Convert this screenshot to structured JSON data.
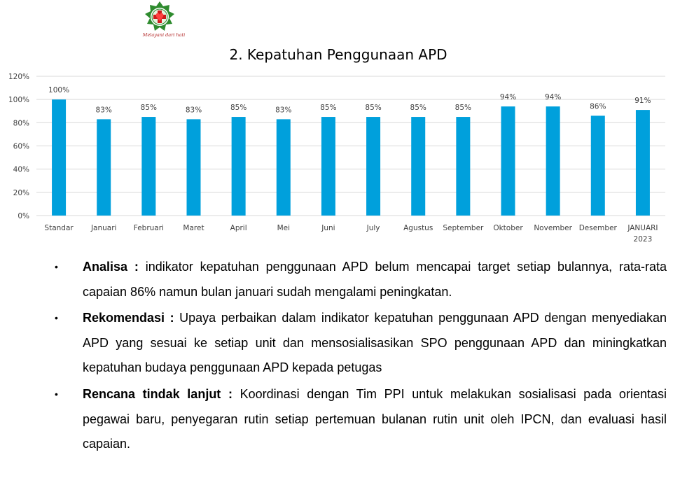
{
  "logo": {
    "motto": "Melayani dari hati"
  },
  "chart_data": {
    "type": "bar",
    "title": "2. Kepatuhan Penggunaan APD",
    "categories": [
      "Standar",
      "Januari",
      "Februari",
      "Maret",
      "April",
      "Mei",
      "Juni",
      "July",
      "Agustus",
      "September",
      "Oktober",
      "November",
      "Desember",
      "JANUARI 2023"
    ],
    "values": [
      100,
      83,
      85,
      83,
      85,
      83,
      85,
      85,
      85,
      85,
      94,
      94,
      86,
      91
    ],
    "data_labels": [
      "100%",
      "83%",
      "85%",
      "83%",
      "85%",
      "83%",
      "85%",
      "85%",
      "85%",
      "85%",
      "94%",
      "94%",
      "86%",
      "91%"
    ],
    "yticks": [
      "0%",
      "20%",
      "40%",
      "60%",
      "80%",
      "100%",
      "120%"
    ],
    "ylim": [
      0,
      120
    ],
    "grid": true,
    "bar_color": "#00A0DC",
    "legend": "none"
  },
  "notes": [
    {
      "label": "Analisa :",
      "text": "indikator kepatuhan penggunaan APD belum mencapai target setiap bulannya, rata-rata capaian 86% namun bulan januari sudah mengalami peningkatan."
    },
    {
      "label": "Rekomendasi :",
      "text": "Upaya perbaikan dalam indikator kepatuhan penggunaan APD dengan menyediakan APD yang sesuai ke setiap unit dan mensosialisasikan SPO penggunaan APD dan miningkatkan kepatuhan budaya penggunaan APD kepada petugas"
    },
    {
      "label": "Rencana tindak lanjut :",
      "text": "Koordinasi dengan Tim PPI untuk melakukan sosialisasi pada orientasi pegawai baru, penyegaran rutin setiap pertemuan bulanan rutin unit oleh IPCN, dan evaluasi hasil capaian."
    }
  ]
}
